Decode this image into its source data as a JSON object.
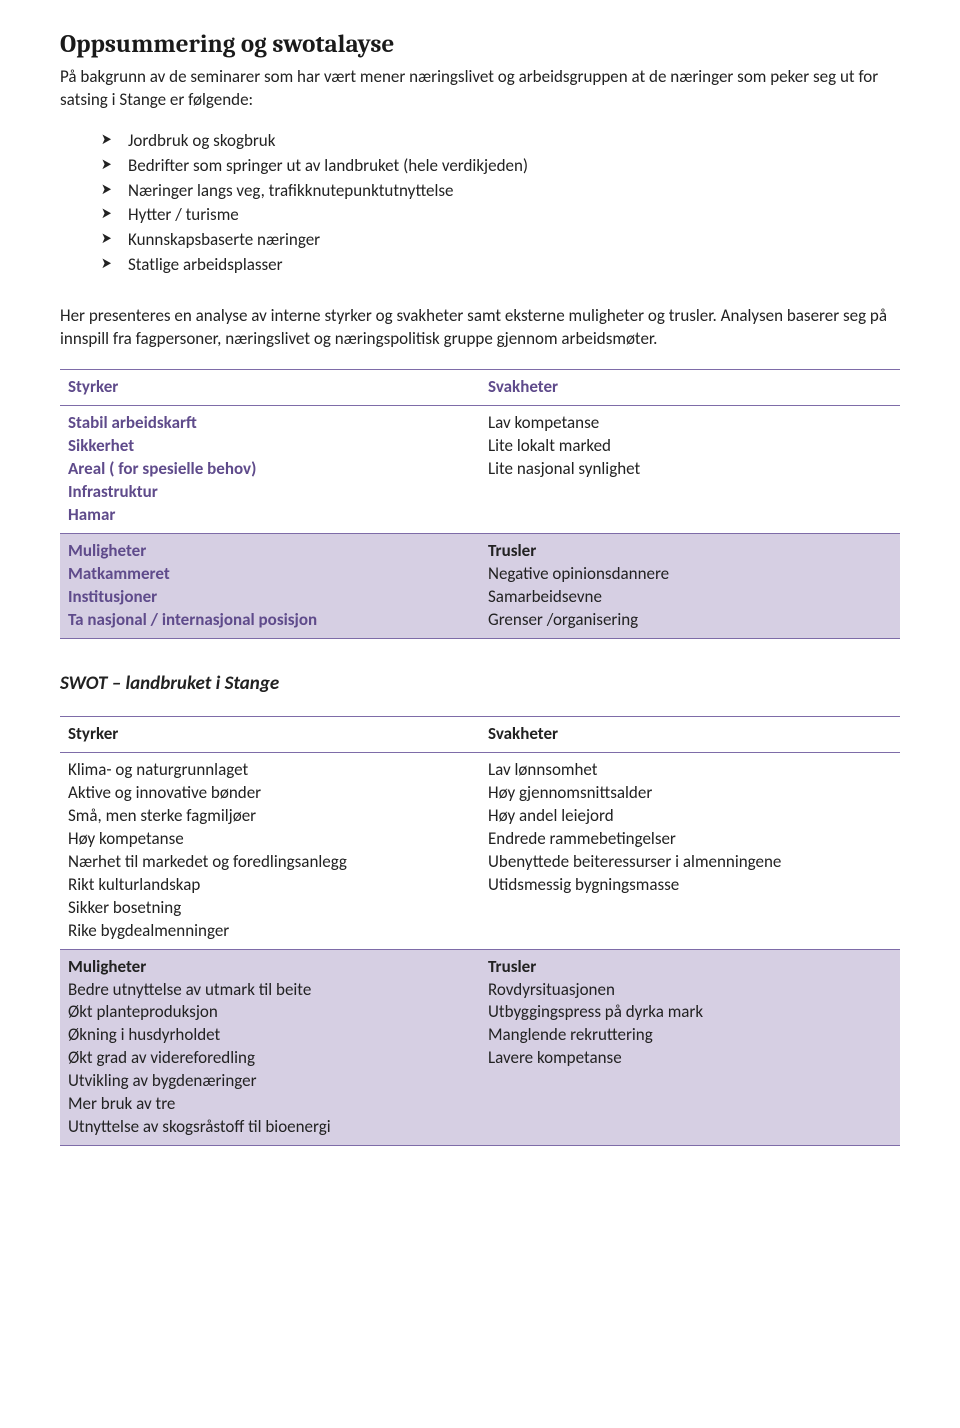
{
  "title": "Oppsummering og swotalayse",
  "intro": "På bakgrunn av de seminarer som har vært mener næringslivet og arbeidsgruppen at de næringer som peker seg ut for satsing i Stange er følgende:",
  "bullets": [
    "Jordbruk og skogbruk",
    "Bedrifter som springer ut av landbruket (hele verdikjeden)",
    "Næringer langs veg, trafikknutepunktutnyttelse",
    "Hytter / turisme",
    "Kunnskapsbaserte næringer",
    "Statlige arbeidsplasser"
  ],
  "para": "Her presenteres en analyse av interne styrker og svakheter samt eksterne muligheter og trusler. Analysen baserer seg på innspill fra fagpersoner, næringslivet og næringspolitisk gruppe gjennom arbeidsmøter.",
  "swot1": {
    "colors": {
      "row_odd_bg": "#ffffff",
      "row_even_bg": "#d6cfe3",
      "border": "#7e6ca8",
      "label_color": "#5f4b8b",
      "text_color": "#222222"
    },
    "headers": [
      "Styrker",
      "Svakheter"
    ],
    "rowA_left": {
      "label": null,
      "items": [
        "Stabil arbeidskarft",
        "Sikkerhet",
        "Areal ( for spesielle behov)",
        "Infrastruktur",
        "Hamar"
      ]
    },
    "rowA_right": {
      "label": null,
      "items": [
        "Lav kompetanse",
        "Lite lokalt marked",
        "Lite nasjonal synlighet"
      ]
    },
    "headers2": [
      "Muligheter",
      "Trusler"
    ],
    "rowB_left": {
      "label": null,
      "items": [
        "Matkammeret",
        "Institusjoner",
        "Ta nasjonal / internasjonal posisjon"
      ]
    },
    "rowB_right": {
      "label": null,
      "items": [
        "Negative opinionsdannere",
        "Samarbeidsevne",
        "Grenser /organisering"
      ]
    }
  },
  "subhead": "SWOT – landbruket i Stange",
  "swot2": {
    "colors": {
      "row_odd_bg": "#ffffff",
      "row_even_bg": "#d6cfe3",
      "border": "#7e6ca8",
      "label_color": "#5f4b8b",
      "text_color": "#222222"
    },
    "headers": [
      "Styrker",
      "Svakheter"
    ],
    "rowA_left": {
      "items": [
        "Klima- og naturgrunnlaget",
        "Aktive og innovative bønder",
        "Små, men sterke fagmiljøer",
        "Høy kompetanse",
        "Nærhet til markedet og foredlingsanlegg",
        "Rikt kulturlandskap",
        "Sikker bosetning",
        "Rike bygdealmenninger"
      ]
    },
    "rowA_right": {
      "items": [
        "Lav lønnsomhet",
        "Høy gjennomsnittsalder",
        "Høy andel leiejord",
        "Endrede rammebetingelser",
        "Ubenyttede beiteressurser i almenningene",
        "Utidsmessig bygningsmasse"
      ]
    },
    "headers2": [
      "Muligheter",
      "Trusler"
    ],
    "rowB_left": {
      "items": [
        "Bedre utnyttelse av utmark til beite",
        "Økt planteproduksjon",
        "Økning i husdyrholdet",
        "Økt grad av videreforedling",
        "Utvikling av bygdenæringer",
        "Mer bruk av tre",
        "Utnyttelse av skogsråstoff til bioenergi"
      ]
    },
    "rowB_right": {
      "items": [
        "Rovdyrsituasjonen",
        "Utbyggingspress på dyrka mark",
        "Manglende rekruttering",
        "Lavere kompetanse"
      ]
    }
  }
}
